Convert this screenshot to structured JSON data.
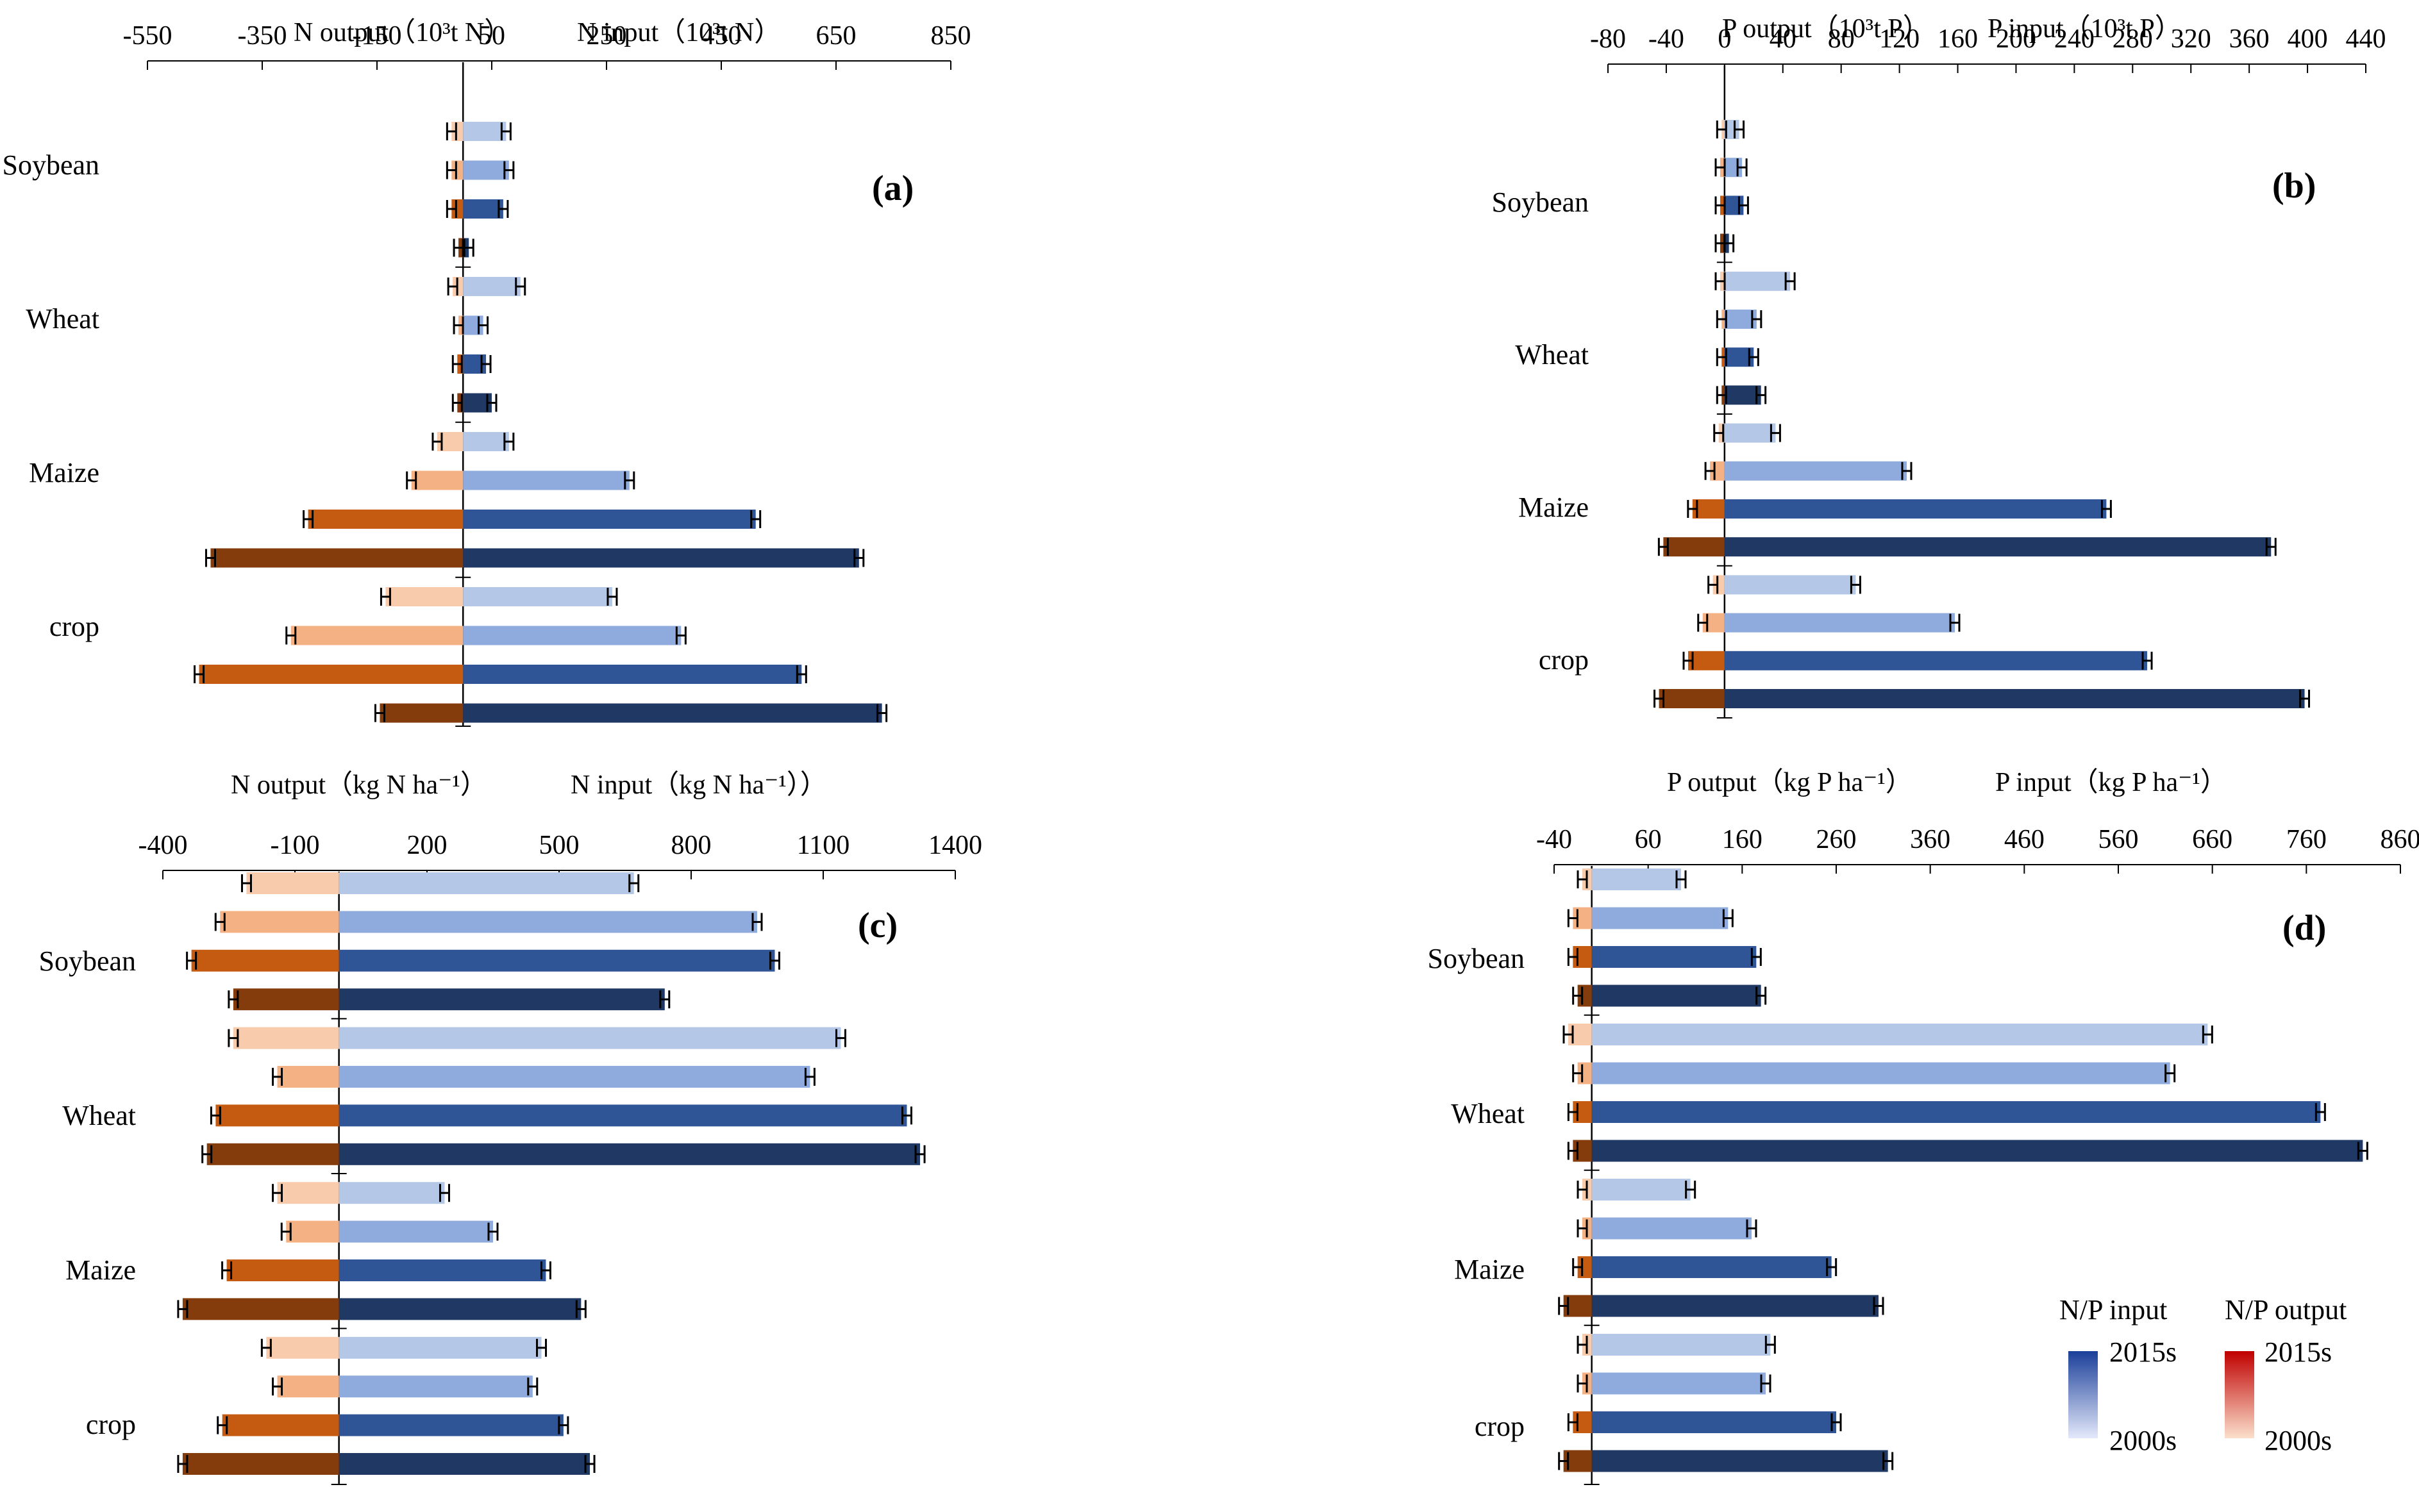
{
  "chart_data": [
    {
      "id": "a",
      "type": "bar",
      "panel_label": "(a)",
      "title_left": "N output（10³t N）",
      "title_right": "N input（10³t N）",
      "ticks": [
        -550,
        -350,
        -150,
        50,
        250,
        450,
        650,
        850
      ],
      "xlim": [
        -550,
        850
      ],
      "groups": [
        "Soybean",
        "Wheat",
        "Maize",
        "crop"
      ],
      "input": [
        [
          75,
          80,
          70,
          10
        ],
        [
          100,
          35,
          40,
          50
        ],
        [
          80,
          290,
          510,
          690
        ],
        [
          260,
          380,
          590,
          730
        ]
      ],
      "output": [
        [
          -20,
          -20,
          -20,
          -8
        ],
        [
          -18,
          -8,
          -10,
          -10
        ],
        [
          -45,
          -90,
          -270,
          -440
        ],
        [
          -135,
          -300,
          -460,
          -145
        ]
      ]
    },
    {
      "id": "b",
      "type": "bar",
      "panel_label": "(b)",
      "title_left": "P output（10³t P）",
      "title_right": "P input（10³t P）",
      "ticks": [
        -80,
        -40,
        0,
        40,
        80,
        120,
        160,
        200,
        240,
        280,
        320,
        360,
        400,
        440
      ],
      "xlim": [
        -80,
        440
      ],
      "groups": [
        "Soybean",
        "Wheat",
        "Maize",
        "crop"
      ],
      "input": [
        [
          10,
          12,
          13,
          3
        ],
        [
          45,
          22,
          20,
          25
        ],
        [
          35,
          125,
          262,
          375
        ],
        [
          90,
          158,
          290,
          398
        ]
      ],
      "output": [
        [
          -2,
          -3,
          -3,
          -3
        ],
        [
          -3,
          -2,
          -2,
          -2
        ],
        [
          -4,
          -10,
          -22,
          -42
        ],
        [
          -8,
          -15,
          -25,
          -45
        ]
      ]
    },
    {
      "id": "c",
      "type": "bar",
      "panel_label": "(c)",
      "title_left": "N output（kg N ha⁻¹）",
      "title_right": "N input（kg N ha⁻¹））",
      "ticks": [
        -400,
        -100,
        200,
        500,
        800,
        1100,
        1400
      ],
      "xlim": [
        -400,
        1400
      ],
      "groups": [
        "Soybean",
        "Wheat",
        "Maize",
        "crop"
      ],
      "input": [
        [
          670,
          950,
          990,
          740
        ],
        [
          1140,
          1070,
          1290,
          1320
        ],
        [
          240,
          350,
          470,
          550
        ],
        [
          460,
          440,
          510,
          570
        ]
      ],
      "output": [
        [
          -210,
          -270,
          -335,
          -240
        ],
        [
          -240,
          -140,
          -280,
          -300
        ],
        [
          -140,
          -120,
          -255,
          -355
        ],
        [
          -165,
          -140,
          -265,
          -355
        ]
      ]
    },
    {
      "id": "d",
      "type": "bar",
      "panel_label": "(d)",
      "title_left": "P output（kg P ha⁻¹）",
      "title_right": "P input（kg P ha⁻¹）",
      "ticks": [
        -40,
        60,
        160,
        260,
        360,
        460,
        560,
        660,
        760,
        860
      ],
      "xlim": [
        -40,
        860
      ],
      "groups": [
        "Soybean",
        "Wheat",
        "Maize",
        "crop"
      ],
      "input": [
        [
          95,
          145,
          175,
          180
        ],
        [
          655,
          615,
          775,
          820
        ],
        [
          105,
          170,
          255,
          305
        ],
        [
          190,
          185,
          260,
          315
        ]
      ],
      "output": [
        [
          -10,
          -20,
          -20,
          -15
        ],
        [
          -25,
          -15,
          -20,
          -20
        ],
        [
          -10,
          -10,
          -15,
          -30
        ],
        [
          -10,
          -10,
          -20,
          -30
        ]
      ]
    }
  ],
  "legend": {
    "input_title": "N/P input",
    "output_title": "N/P output",
    "top_label": "2015s",
    "bottom_label": "2000s"
  },
  "colors": {
    "input": [
      "#b4c7e7",
      "#8faadc",
      "#2f5597",
      "#1f3864"
    ],
    "output": [
      "#f8cbad",
      "#f4b183",
      "#c55a11",
      "#843c0c"
    ],
    "legend_input": [
      "#1b3f99",
      "#e4e9fb"
    ],
    "legend_output": [
      "#c00000",
      "#fbe0cc"
    ]
  }
}
